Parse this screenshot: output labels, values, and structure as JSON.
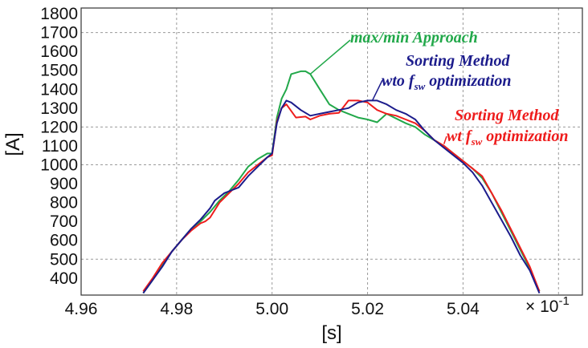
{
  "chart_data": {
    "type": "line",
    "title": "",
    "xlabel": "[s]",
    "ylabel": "[A]",
    "x_multiplier": "× 10",
    "x_multiplier_exp": "-1",
    "xlim": [
      4.96,
      5.065
    ],
    "ylim": [
      310,
      1830
    ],
    "xticks": [
      4.96,
      4.98,
      5.0,
      5.02,
      5.04
    ],
    "xtick_labels": [
      "4.96",
      "4.98",
      "5.00",
      "5.02",
      "5.04"
    ],
    "yticks": [
      400,
      500,
      600,
      700,
      800,
      900,
      1000,
      1100,
      1200,
      1300,
      1400,
      1500,
      1600,
      1700,
      1800
    ],
    "grid_x": [
      4.96,
      4.98,
      5.0,
      5.02,
      5.04,
      5.06
    ],
    "grid_y": [
      500,
      1000,
      1200,
      1700
    ],
    "series": [
      {
        "key": "green",
        "color": "#22a84a",
        "x": [
          4.973,
          4.975,
          4.977,
          4.979,
          4.981,
          4.983,
          4.985,
          4.987,
          4.989,
          4.991,
          4.993,
          4.995,
          4.997,
          4.999,
          5.0,
          5.001,
          5.002,
          5.003,
          5.004,
          5.006,
          5.007,
          5.008,
          5.01,
          5.012,
          5.014,
          5.016,
          5.018,
          5.02,
          5.022,
          5.024,
          5.026,
          5.028,
          5.03,
          5.032,
          5.034,
          5.036,
          5.038,
          5.04,
          5.042,
          5.044,
          5.046,
          5.048,
          5.05,
          5.052,
          5.054,
          5.056
        ],
        "y": [
          320,
          390,
          470,
          540,
          600,
          660,
          700,
          750,
          810,
          860,
          920,
          990,
          1030,
          1060,
          1060,
          1250,
          1350,
          1400,
          1480,
          1495,
          1495,
          1480,
          1400,
          1320,
          1290,
          1270,
          1250,
          1240,
          1225,
          1270,
          1245,
          1220,
          1200,
          1160,
          1130,
          1100,
          1060,
          1020,
          980,
          930,
          850,
          750,
          650,
          550,
          450,
          330
        ]
      },
      {
        "key": "red",
        "color": "#ee1c1c",
        "x": [
          4.973,
          4.975,
          4.977,
          4.979,
          4.981,
          4.983,
          4.985,
          4.986,
          4.987,
          4.989,
          4.991,
          4.993,
          4.995,
          4.997,
          4.999,
          5.0,
          5.001,
          5.002,
          5.003,
          5.005,
          5.007,
          5.008,
          5.01,
          5.012,
          5.014,
          5.016,
          5.018,
          5.02,
          5.022,
          5.024,
          5.026,
          5.028,
          5.03,
          5.032,
          5.034,
          5.036,
          5.038,
          5.04,
          5.042,
          5.044,
          5.046,
          5.048,
          5.05,
          5.052,
          5.054,
          5.056
        ],
        "y": [
          330,
          400,
          480,
          540,
          600,
          650,
          690,
          700,
          720,
          800,
          850,
          900,
          960,
          1000,
          1040,
          1050,
          1230,
          1300,
          1320,
          1250,
          1255,
          1240,
          1260,
          1270,
          1275,
          1340,
          1340,
          1330,
          1290,
          1270,
          1260,
          1240,
          1220,
          1180,
          1130,
          1100,
          1060,
          1020,
          980,
          940,
          850,
          760,
          660,
          560,
          460,
          330
        ]
      },
      {
        "key": "blue",
        "color": "#1c1c8c",
        "x": [
          4.973,
          4.975,
          4.977,
          4.979,
          4.981,
          4.983,
          4.985,
          4.987,
          4.988,
          4.99,
          4.991,
          4.993,
          4.995,
          4.997,
          4.999,
          5.0,
          5.001,
          5.002,
          5.003,
          5.004,
          5.006,
          5.008,
          5.01,
          5.012,
          5.014,
          5.016,
          5.018,
          5.02,
          5.022,
          5.024,
          5.026,
          5.028,
          5.03,
          5.032,
          5.034,
          5.036,
          5.038,
          5.04,
          5.042,
          5.044,
          5.046,
          5.048,
          5.05,
          5.052,
          5.054,
          5.056
        ],
        "y": [
          320,
          390,
          460,
          540,
          600,
          660,
          710,
          770,
          810,
          850,
          860,
          880,
          940,
          990,
          1040,
          1060,
          1220,
          1300,
          1340,
          1330,
          1290,
          1260,
          1270,
          1280,
          1290,
          1300,
          1330,
          1340,
          1340,
          1320,
          1290,
          1270,
          1240,
          1180,
          1130,
          1090,
          1050,
          1010,
          960,
          890,
          800,
          710,
          620,
          520,
          440,
          320
        ]
      }
    ],
    "annotations": [
      {
        "key": "green",
        "text": "max/min Approach",
        "sub": "",
        "suffix": ""
      },
      {
        "key": "blue",
        "text": "Sorting Method",
        "line2_prefix": "wto f",
        "sub": "sw",
        "suffix": " optimization"
      },
      {
        "key": "red",
        "text": "Sorting Method",
        "line2_prefix": "wt f",
        "sub": "sw",
        "suffix": " optimization"
      }
    ]
  }
}
